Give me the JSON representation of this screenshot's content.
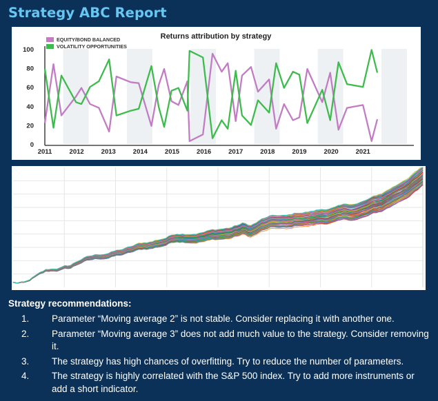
{
  "report": {
    "title": "Strategy ABC Report"
  },
  "chart_data": [
    {
      "type": "line",
      "title": "Returns attribution by strategy",
      "x_ticks": [
        "2011",
        "2012",
        "2013",
        "2014",
        "2015",
        "2016",
        "2017",
        "2018",
        "2019",
        "2020",
        "2021"
      ],
      "x_range": [
        2011,
        2022.6
      ],
      "ylim": [
        0,
        100
      ],
      "y_ticks": [
        0,
        20,
        40,
        60,
        80,
        100
      ],
      "legend_position": "top-left",
      "grid": false,
      "shaded_year_bands": true,
      "series": [
        {
          "name": "EQUITY/BOND BALANCED",
          "color": "#c27cc4",
          "points": [
            [
              2011.0,
              22
            ],
            [
              2011.27,
              84
            ],
            [
              2011.52,
              30
            ],
            [
              2011.98,
              50
            ],
            [
              2012.15,
              59
            ],
            [
              2012.42,
              42
            ],
            [
              2012.7,
              38
            ],
            [
              2013.02,
              13
            ],
            [
              2013.25,
              71
            ],
            [
              2013.7,
              65
            ],
            [
              2013.95,
              64
            ],
            [
              2014.35,
              19
            ],
            [
              2014.58,
              62
            ],
            [
              2014.75,
              79
            ],
            [
              2014.98,
              45
            ],
            [
              2015.2,
              41
            ],
            [
              2015.48,
              66
            ],
            [
              2015.55,
              3
            ],
            [
              2015.97,
              10
            ],
            [
              2016.27,
              95
            ],
            [
              2016.56,
              76
            ],
            [
              2016.75,
              85
            ],
            [
              2017.0,
              24
            ],
            [
              2017.2,
              72
            ],
            [
              2017.48,
              81
            ],
            [
              2017.7,
              55
            ],
            [
              2018.05,
              68
            ],
            [
              2018.27,
              16
            ],
            [
              2018.52,
              42
            ],
            [
              2018.8,
              25
            ],
            [
              2019.0,
              28
            ],
            [
              2019.25,
              79
            ],
            [
              2019.72,
              44
            ],
            [
              2019.97,
              75
            ],
            [
              2020.23,
              15
            ],
            [
              2020.5,
              38
            ],
            [
              2021.0,
              41
            ],
            [
              2021.27,
              3
            ],
            [
              2021.45,
              26
            ]
          ]
        },
        {
          "name": "VOLATILITY OPPORTUNITIES",
          "color": "#3dbb4d",
          "points": [
            [
              2011.0,
              79
            ],
            [
              2011.27,
              17
            ],
            [
              2011.52,
              72
            ],
            [
              2011.98,
              44
            ],
            [
              2012.15,
              42
            ],
            [
              2012.42,
              60
            ],
            [
              2012.7,
              66
            ],
            [
              2013.02,
              89
            ],
            [
              2013.25,
              30
            ],
            [
              2013.7,
              35
            ],
            [
              2013.95,
              37
            ],
            [
              2014.35,
              82
            ],
            [
              2014.58,
              39
            ],
            [
              2014.75,
              18
            ],
            [
              2014.98,
              56
            ],
            [
              2015.2,
              59
            ],
            [
              2015.48,
              35
            ],
            [
              2015.55,
              98
            ],
            [
              2015.97,
              91
            ],
            [
              2016.27,
              6
            ],
            [
              2016.56,
              25
            ],
            [
              2016.75,
              16
            ],
            [
              2017.0,
              77
            ],
            [
              2017.2,
              30
            ],
            [
              2017.48,
              20
            ],
            [
              2017.7,
              46
            ],
            [
              2018.05,
              33
            ],
            [
              2018.27,
              85
            ],
            [
              2018.52,
              59
            ],
            [
              2018.8,
              76
            ],
            [
              2019.0,
              73
            ],
            [
              2019.25,
              22
            ],
            [
              2019.72,
              57
            ],
            [
              2019.97,
              25
            ],
            [
              2020.23,
              86
            ],
            [
              2020.5,
              63
            ],
            [
              2021.0,
              60
            ],
            [
              2021.27,
              99
            ],
            [
              2021.45,
              75
            ]
          ]
        }
      ]
    },
    {
      "type": "line",
      "title": "",
      "description_series_count": 60,
      "grid": true,
      "palette": [
        "#1f77b4",
        "#ff7f0e",
        "#2ca02c",
        "#d62728",
        "#9467bd",
        "#8c564b",
        "#e377c2",
        "#7f7f7f",
        "#bcbd22",
        "#17becf"
      ],
      "x_range": [
        0,
        1
      ],
      "ylim": [
        0,
        1
      ],
      "trend_points": [
        [
          0.0,
          0.04
        ],
        [
          0.03,
          0.03
        ],
        [
          0.05,
          0.07
        ],
        [
          0.08,
          0.12
        ],
        [
          0.11,
          0.14
        ],
        [
          0.14,
          0.16
        ],
        [
          0.17,
          0.22
        ],
        [
          0.2,
          0.24
        ],
        [
          0.24,
          0.27
        ],
        [
          0.28,
          0.3
        ],
        [
          0.31,
          0.33
        ],
        [
          0.34,
          0.35
        ],
        [
          0.37,
          0.38
        ],
        [
          0.4,
          0.42
        ],
        [
          0.44,
          0.43
        ],
        [
          0.47,
          0.44
        ],
        [
          0.5,
          0.45
        ],
        [
          0.53,
          0.46
        ],
        [
          0.56,
          0.49
        ],
        [
          0.58,
          0.47
        ],
        [
          0.61,
          0.52
        ],
        [
          0.64,
          0.54
        ],
        [
          0.67,
          0.53
        ],
        [
          0.7,
          0.56
        ],
        [
          0.73,
          0.57
        ],
        [
          0.77,
          0.6
        ],
        [
          0.8,
          0.61
        ],
        [
          0.84,
          0.63
        ],
        [
          0.87,
          0.66
        ],
        [
          0.9,
          0.7
        ],
        [
          0.93,
          0.76
        ],
        [
          0.96,
          0.83
        ],
        [
          1.0,
          0.92
        ]
      ]
    }
  ],
  "recommendations": {
    "header": "Strategy recommendations:",
    "items": [
      {
        "num": "1.",
        "text": "Parameter “Moving average 2” is not stable. Consider replacing it with another one."
      },
      {
        "num": "2.",
        "text": "Parameter “Moving average 3” does not add much value to the strategy. Consider removing it."
      },
      {
        "num": "3.",
        "text": "The strategy has high chances of overfitting. Try to reduce the number of parameters."
      },
      {
        "num": "4.",
        "text": "The strategy is highly correlated with the S&P 500 index. Try to add more instruments or add a short indicator."
      }
    ]
  }
}
